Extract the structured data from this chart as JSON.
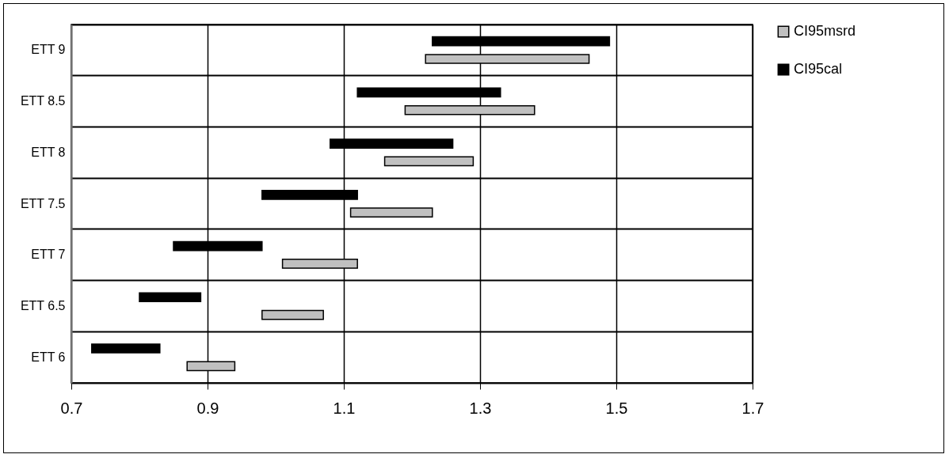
{
  "chart_data": {
    "type": "bar",
    "orientation": "horizontal",
    "categories": [
      "ETT 9",
      "ETT 8.5",
      "ETT 8",
      "ETT 7.5",
      "ETT 7",
      "ETT 6.5",
      "ETT 6"
    ],
    "series": [
      {
        "name": "CI95msrd",
        "color": "#c0c0c0",
        "base": [
          1.22,
          1.19,
          1.16,
          1.11,
          1.01,
          0.98,
          0.87
        ],
        "values": [
          0.24,
          0.19,
          0.13,
          0.12,
          0.11,
          0.09,
          0.07
        ]
      },
      {
        "name": "CI95cal",
        "color": "#000000",
        "base": [
          1.23,
          1.12,
          1.08,
          0.98,
          0.85,
          0.8,
          0.73
        ],
        "values": [
          0.26,
          0.21,
          0.18,
          0.14,
          0.13,
          0.09,
          0.1
        ]
      }
    ],
    "xlim": [
      0.7,
      1.7
    ],
    "xticks": [
      0.7,
      0.9,
      1.1,
      1.3,
      1.5,
      1.7
    ],
    "grid": true,
    "legend": "right"
  }
}
